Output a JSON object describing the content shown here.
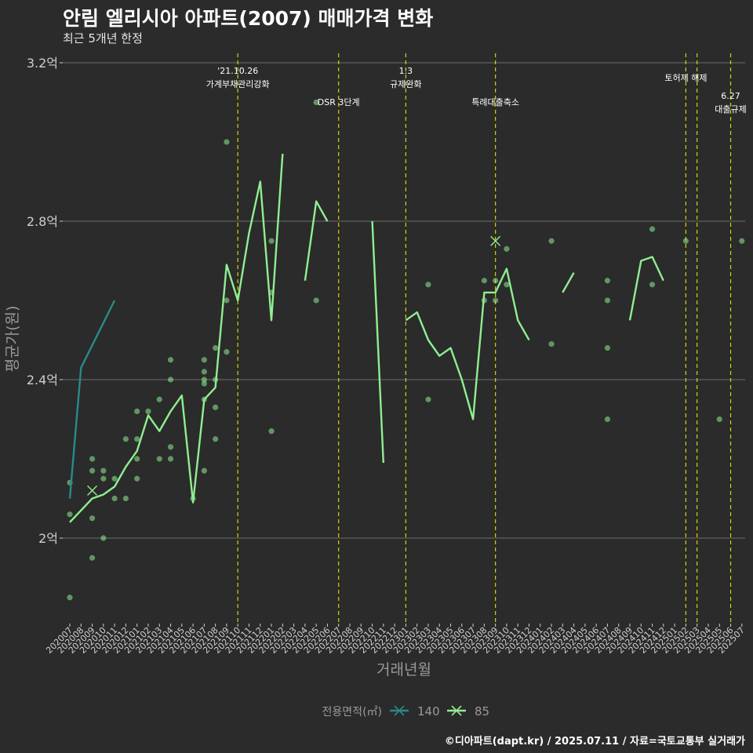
{
  "title": "안림 엘리시아 아파트(2007) 매매가격 변화",
  "subtitle": "최근 5개년 한정",
  "caption": "©디아파트(dapt.kr) / 2025.07.11 / 자료=국토교통부 실거래가",
  "colors": {
    "bg": "#2b2b2b",
    "grid": "#6e6e6e",
    "s140": "#2a8a8a",
    "s85": "#90ee90",
    "vline": "#d4d400",
    "text": "#ffffff",
    "axis": "#cfcfcf",
    "muted": "#9a9a9a"
  },
  "chart_data": {
    "type": "line",
    "xlabel": "거래년월",
    "ylabel": "평균가(원)",
    "ylim": [
      1.8,
      3.2
    ],
    "yticks": [
      {
        "value": 2.0,
        "label": "2억"
      },
      {
        "value": 2.4,
        "label": "2.4억"
      },
      {
        "value": 2.8,
        "label": "2.8억"
      },
      {
        "value": 3.2,
        "label": "3.2억"
      }
    ],
    "x": [
      "202007",
      "202008",
      "202009",
      "202010",
      "202011",
      "202012",
      "202101",
      "202102",
      "202103",
      "202104",
      "202105",
      "202106",
      "202107",
      "202108",
      "202109",
      "202110",
      "202111",
      "202112",
      "202201",
      "202202",
      "202203",
      "202204",
      "202205",
      "202206",
      "202207",
      "202208",
      "202209",
      "202210",
      "202211",
      "202212",
      "202301",
      "202302",
      "202303",
      "202304",
      "202305",
      "202306",
      "202307",
      "202308",
      "202309",
      "202310",
      "202311",
      "202312",
      "202401",
      "202402",
      "202403",
      "202404",
      "202405",
      "202406",
      "202407",
      "202408",
      "202409",
      "202410",
      "202411",
      "202412",
      "202501",
      "202502",
      "202503",
      "202504",
      "202505",
      "202506",
      "202507"
    ],
    "legend": {
      "title": "전용면적(㎡)",
      "position": "bottom"
    },
    "series": [
      {
        "name": "140",
        "color": "#2a8a8a",
        "segments": [
          [
            [
              "202007",
              2.1
            ],
            [
              "202008",
              2.43
            ],
            [
              "202011",
              2.6
            ]
          ]
        ]
      },
      {
        "name": "85",
        "color": "#90ee90",
        "segments": [
          [
            [
              "202007",
              2.04
            ],
            [
              "202008",
              2.07
            ],
            [
              "202009",
              2.1
            ],
            [
              "202010",
              2.11
            ],
            [
              "202011",
              2.13
            ],
            [
              "202012",
              2.18
            ],
            [
              "202101",
              2.22
            ],
            [
              "202102",
              2.31
            ],
            [
              "202103",
              2.27
            ],
            [
              "202104",
              2.32
            ],
            [
              "202105",
              2.36
            ],
            [
              "202106",
              2.09
            ],
            [
              "202107",
              2.35
            ],
            [
              "202108",
              2.38
            ],
            [
              "202109",
              2.69
            ],
            [
              "202110",
              2.6
            ],
            [
              "202111",
              2.77
            ],
            [
              "202112",
              2.9
            ],
            [
              "202201",
              2.55
            ],
            [
              "202202",
              2.97
            ]
          ],
          [
            [
              "202204",
              2.65
            ],
            [
              "202205",
              2.85
            ],
            [
              "202206",
              2.8
            ]
          ],
          [
            [
              "202210",
              2.8
            ],
            [
              "202211",
              2.19
            ]
          ],
          [
            [
              "202301",
              2.55
            ],
            [
              "202302",
              2.57
            ],
            [
              "202303",
              2.5
            ],
            [
              "202304",
              2.46
            ],
            [
              "202305",
              2.48
            ],
            [
              "202306",
              2.4
            ],
            [
              "202307",
              2.3
            ],
            [
              "202308",
              2.62
            ],
            [
              "202309",
              2.62
            ],
            [
              "202310",
              2.68
            ],
            [
              "202311",
              2.55
            ],
            [
              "202312",
              2.5
            ]
          ],
          [
            [
              "202403",
              2.62
            ],
            [
              "202404",
              2.67
            ]
          ],
          [
            [
              "202409",
              2.55
            ],
            [
              "202410",
              2.7
            ],
            [
              "202411",
              2.71
            ],
            [
              "202412",
              2.65
            ]
          ]
        ]
      }
    ],
    "points": [
      [
        "202007",
        2.14
      ],
      [
        "202007",
        2.06
      ],
      [
        "202007",
        1.85
      ],
      [
        "202009",
        2.2
      ],
      [
        "202009",
        2.17
      ],
      [
        "202009",
        2.05
      ],
      [
        "202009",
        1.95
      ],
      [
        "202010",
        2.17
      ],
      [
        "202010",
        2.15
      ],
      [
        "202010",
        2.0
      ],
      [
        "202011",
        2.15
      ],
      [
        "202011",
        2.1
      ],
      [
        "202012",
        2.25
      ],
      [
        "202012",
        2.1
      ],
      [
        "202101",
        2.32
      ],
      [
        "202101",
        2.25
      ],
      [
        "202101",
        2.2
      ],
      [
        "202101",
        2.15
      ],
      [
        "202102",
        2.32
      ],
      [
        "202103",
        2.35
      ],
      [
        "202103",
        2.2
      ],
      [
        "202104",
        2.45
      ],
      [
        "202104",
        2.4
      ],
      [
        "202104",
        2.23
      ],
      [
        "202104",
        2.2
      ],
      [
        "202106",
        2.1
      ],
      [
        "202107",
        2.45
      ],
      [
        "202107",
        2.42
      ],
      [
        "202107",
        2.4
      ],
      [
        "202107",
        2.39
      ],
      [
        "202107",
        2.35
      ],
      [
        "202107",
        2.17
      ],
      [
        "202108",
        2.48
      ],
      [
        "202108",
        2.4
      ],
      [
        "202108",
        2.33
      ],
      [
        "202108",
        2.25
      ],
      [
        "202109",
        3.0
      ],
      [
        "202109",
        2.6
      ],
      [
        "202109",
        2.47
      ],
      [
        "202201",
        2.75
      ],
      [
        "202201",
        2.62
      ],
      [
        "202201",
        2.27
      ],
      [
        "202205",
        3.1
      ],
      [
        "202205",
        2.6
      ],
      [
        "202303",
        2.64
      ],
      [
        "202303",
        2.35
      ],
      [
        "202308",
        2.65
      ],
      [
        "202308",
        2.6
      ],
      [
        "202309",
        2.65
      ],
      [
        "202309",
        2.6
      ],
      [
        "202310",
        2.73
      ],
      [
        "202310",
        2.64
      ],
      [
        "202402",
        2.75
      ],
      [
        "202402",
        2.49
      ],
      [
        "202407",
        2.65
      ],
      [
        "202407",
        2.6
      ],
      [
        "202407",
        2.48
      ],
      [
        "202407",
        2.3
      ],
      [
        "202411",
        2.78
      ],
      [
        "202411",
        2.64
      ],
      [
        "202502",
        2.75
      ],
      [
        "202505",
        2.3
      ],
      [
        "202507",
        2.75
      ]
    ],
    "cross_markers": [
      {
        "series": "85",
        "x": "202009",
        "y": 2.12
      },
      {
        "series": "85",
        "x": "202309",
        "y": 2.75
      }
    ],
    "events": [
      {
        "x": "202110",
        "lines": [
          "'21.10.26",
          "가계부채관리강화"
        ],
        "row": 0
      },
      {
        "x": "202207",
        "lines": [
          "DSR 3단계"
        ],
        "row": 1
      },
      {
        "x": "202301",
        "lines": [
          "1.3",
          "규제완화"
        ],
        "row": 0
      },
      {
        "x": "202309",
        "lines": [
          "특례대출축소"
        ],
        "row": 1
      },
      {
        "x": "202502",
        "lines": [
          "토허제 해제"
        ],
        "row": 0
      },
      {
        "x": "202503",
        "lines": [],
        "row": 0
      },
      {
        "x": "202506",
        "lines": [
          "6.27",
          "대출규제"
        ],
        "row": 2
      }
    ]
  }
}
